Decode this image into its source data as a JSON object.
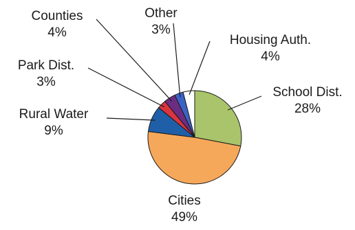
{
  "chart_data": {
    "type": "pie",
    "title": "",
    "start_angle_deg": 0,
    "direction": "clockwise",
    "slices": [
      {
        "label": "School Dist.",
        "percent_text": "28%",
        "value": 28,
        "color": "#a9c46a"
      },
      {
        "label": "Cities",
        "percent_text": "49%",
        "value": 49,
        "color": "#f6a85a"
      },
      {
        "label": "Rural Water",
        "percent_text": "9%",
        "value": 9,
        "color": "#1f5fa8"
      },
      {
        "label": "Park Dist.",
        "percent_text": "3%",
        "value": 3,
        "color": "#d9343f"
      },
      {
        "label": "Counties",
        "percent_text": "4%",
        "value": 4,
        "color": "#6b2d82"
      },
      {
        "label": "Other",
        "percent_text": "3%",
        "value": 3,
        "color": "#3b63c6"
      },
      {
        "label": "Housing Auth.",
        "percent_text": "4%",
        "value": 4,
        "color": "#ffffff"
      }
    ]
  }
}
